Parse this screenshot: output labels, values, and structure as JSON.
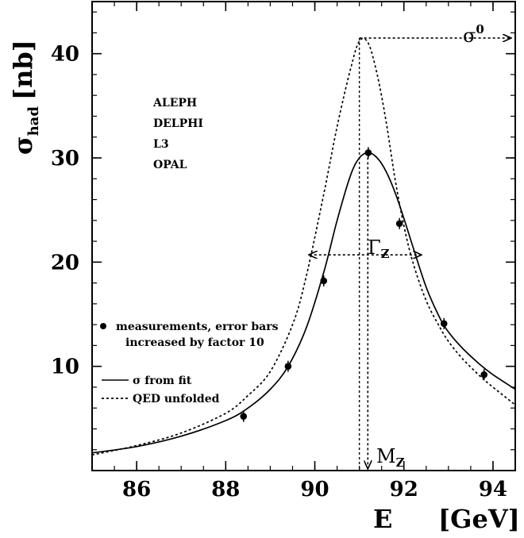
{
  "chart_data": {
    "type": "line",
    "xlim": [
      85,
      94.5
    ],
    "ylim": [
      0,
      45
    ],
    "x_ticks": [
      86,
      88,
      90,
      92,
      94
    ],
    "y_ticks": [
      10,
      20,
      30,
      40
    ],
    "x_tick_labels": [
      "86",
      "88",
      "90",
      "92",
      "94"
    ],
    "y_tick_labels": [
      "10",
      "20",
      "30",
      "40"
    ],
    "xlabel": {
      "main": "E",
      "unit": "[GeV]"
    },
    "ylabel": {
      "main": "σ",
      "sub": "had",
      "unit": "[nb]"
    },
    "experiments": [
      "ALEPH",
      "DELPHI",
      "L3",
      "OPAL"
    ],
    "legend": {
      "placement": "left",
      "measurements_line1": "measurements, error bars",
      "measurements_line2": "increased by factor 10",
      "fit": "σ from fit",
      "qed": "QED unfolded"
    },
    "annotations": {
      "sigma0": "σ",
      "sigma0_sup": "0",
      "gamma": "Γ",
      "gamma_sub": "Z",
      "mz": "M",
      "mz_sub": "Z"
    },
    "series": [
      {
        "style": "solid",
        "x": [
          85.0,
          86.0,
          87.0,
          88.0,
          88.5,
          89.0,
          89.4,
          89.8,
          90.2,
          90.5,
          90.8,
          91.0,
          91.2,
          91.4,
          91.6,
          91.8,
          92.0,
          92.2,
          92.5,
          92.8,
          93.0,
          93.3,
          93.7,
          94.0,
          94.5
        ],
        "y": [
          1.7,
          2.3,
          3.3,
          4.8,
          6.0,
          7.8,
          10.0,
          13.6,
          19.0,
          24.0,
          28.3,
          30.0,
          30.5,
          30.0,
          28.7,
          26.7,
          24.2,
          21.5,
          17.6,
          14.7,
          13.3,
          11.8,
          10.2,
          9.2,
          7.8
        ]
      },
      {
        "style": "dashed",
        "x": [
          85.0,
          86.0,
          87.0,
          88.0,
          88.5,
          89.0,
          89.5,
          89.8,
          90.2,
          90.5,
          90.8,
          91.0,
          91.2,
          91.4,
          91.6,
          91.8,
          92.0,
          92.2,
          92.5,
          92.8,
          93.0,
          93.3,
          93.7,
          94.0,
          94.5
        ],
        "y": [
          1.5,
          2.4,
          3.6,
          5.5,
          7.2,
          9.5,
          14.0,
          18.5,
          26.5,
          33.0,
          38.5,
          41.2,
          41.0,
          38.0,
          33.5,
          28.0,
          23.5,
          20.0,
          16.3,
          13.8,
          12.4,
          10.8,
          9.1,
          8.0,
          6.3
        ]
      }
    ],
    "points": [
      {
        "x": 88.4,
        "y": 5.2
      },
      {
        "x": 89.4,
        "y": 10.0
      },
      {
        "x": 90.2,
        "y": 18.2
      },
      {
        "x": 91.2,
        "y": 30.5
      },
      {
        "x": 91.9,
        "y": 23.7
      },
      {
        "x": 92.9,
        "y": 14.1
      },
      {
        "x": 93.8,
        "y": 9.2
      }
    ],
    "sigma0_value": 41.5,
    "mz_value": 91.19,
    "gamma_y": 20.7,
    "gamma_x_range": [
      89.88,
      92.38
    ]
  }
}
